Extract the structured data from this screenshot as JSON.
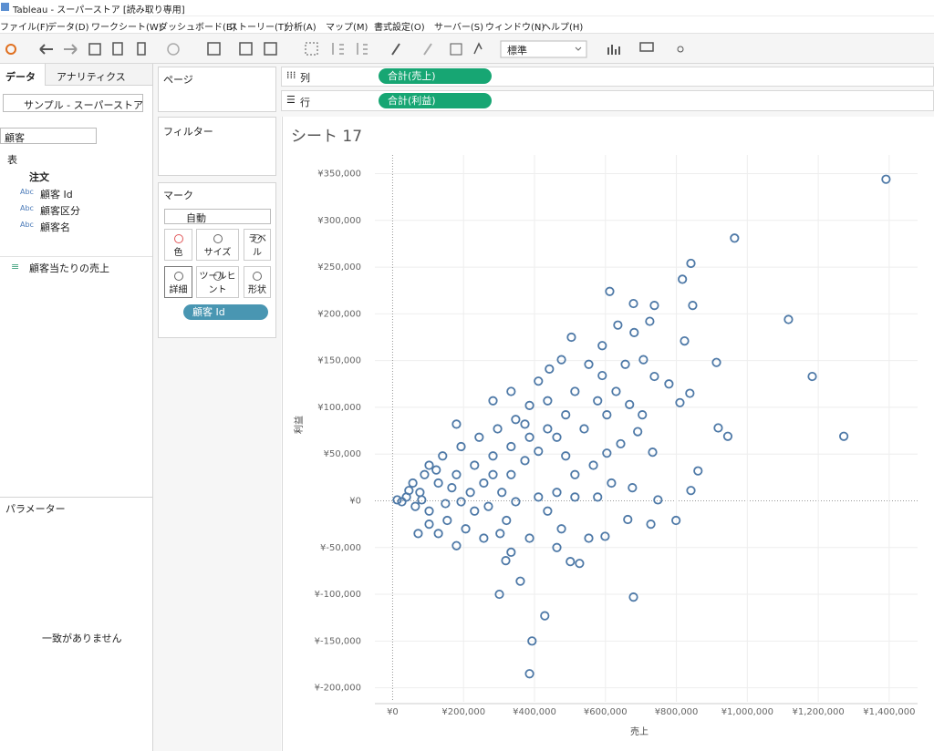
{
  "window": {
    "title": "Tableau - スーパーストア [読み取り専用]"
  },
  "menu": [
    "ファイル(F)",
    "データ(D)",
    "ワークシート(W)",
    "ダッシュボード(B)",
    "ストーリー(T)",
    "分析(A)",
    "マップ(M)",
    "書式設定(O)",
    "サーバー(S)",
    "ウィンドウ(N)",
    "ヘルプ(H)"
  ],
  "toolbar": {
    "fit": "標準"
  },
  "data_pane": {
    "tabs": [
      "データ",
      "アナリティクス"
    ],
    "datasource": "サンプル - スーパーストア",
    "search": "顧客",
    "section": "表",
    "table": "注文",
    "fields": [
      {
        "type": "Abc",
        "name": "顧客 Id"
      },
      {
        "type": "Abc",
        "name": "顧客区分"
      },
      {
        "type": "Abc",
        "name": "顧客名"
      }
    ],
    "calc_field": "顧客当たりの売上",
    "parameters": "パラメーター",
    "no_match": "一致がありません"
  },
  "cards": {
    "pages": "ページ",
    "filters": "フィルター",
    "marks": "マーク",
    "mark_type": "自動",
    "buttons": [
      "色",
      "サイズ",
      "ラベル",
      "詳細",
      "ツールヒント",
      "形状"
    ],
    "detail_pill": "顧客 Id"
  },
  "shelves": {
    "columns": {
      "label": "列",
      "pill": "合計(売上)"
    },
    "rows": {
      "label": "行",
      "pill": "合計(利益)"
    }
  },
  "chart_data": {
    "type": "scatter",
    "title": "シート 17",
    "x_label": "売上",
    "y_label": "利益",
    "color": "#4e79a7",
    "grid": true,
    "xlim": [
      -50000,
      1480000
    ],
    "ylim": [
      -215000,
      370000
    ],
    "xticks": [
      {
        "value": 0,
        "label": "¥0"
      },
      {
        "value": 200000,
        "label": "¥200,000"
      },
      {
        "value": 400000,
        "label": "¥400,000"
      },
      {
        "value": 600000,
        "label": "¥600,000"
      },
      {
        "value": 800000,
        "label": "¥800,000"
      },
      {
        "value": 1000000,
        "label": "¥1,000,000"
      },
      {
        "value": 1200000,
        "label": "¥1,200,000"
      },
      {
        "value": 1400000,
        "label": "¥1,400,000"
      }
    ],
    "yticks": [
      {
        "value": 350000,
        "label": "¥350,000"
      },
      {
        "value": 300000,
        "label": "¥300,000"
      },
      {
        "value": 250000,
        "label": "¥250,000"
      },
      {
        "value": 200000,
        "label": "¥200,000"
      },
      {
        "value": 150000,
        "label": "¥150,000"
      },
      {
        "value": 100000,
        "label": "¥100,000"
      },
      {
        "value": 50000,
        "label": "¥50,000"
      },
      {
        "value": 0,
        "label": "¥0"
      },
      {
        "value": -50000,
        "label": "¥-50,000"
      },
      {
        "value": -100000,
        "label": "¥-100,000"
      },
      {
        "value": -150000,
        "label": "¥-150,000"
      },
      {
        "value": -200000,
        "label": "¥-200,000"
      }
    ],
    "x": [
      1391000,
      964000,
      841000,
      817000,
      846000,
      1116000,
      1183000,
      1272000,
      913000,
      945000,
      918000,
      861000,
      841000,
      612000,
      679000,
      738000,
      725000,
      681000,
      635000,
      823000,
      504000,
      679000,
      386000,
      393000,
      429000,
      360000,
      319000,
      301000,
      599000,
      527000,
      663000,
      799000,
      728000,
      748000,
      676000,
      810000,
      838000,
      779000,
      707000,
      738000,
      668000,
      704000,
      691000,
      733000,
      643000,
      604000,
      566000,
      514000,
      591000,
      553000,
      476000,
      442000,
      411000,
      514000,
      578000,
      488000,
      437000,
      540000,
      386000,
      334000,
      283000,
      231000,
      180000,
      129000,
      77000,
      39000,
      13000,
      26000,
      64000,
      103000,
      154000,
      206000,
      257000,
      303000,
      231000,
      347000,
      411000,
      463000,
      514000,
      437000,
      386000,
      463000,
      501000,
      553000,
      334000,
      283000,
      334000,
      373000,
      411000,
      463000,
      347000,
      296000,
      244000,
      193000,
      141000,
      103000,
      180000,
      283000,
      334000,
      386000,
      437000,
      373000,
      167000,
      219000,
      103000,
      129000,
      72000,
      180000,
      476000,
      578000,
      617000,
      488000,
      604000,
      630000,
      656000,
      591000,
      57000,
      90000,
      123000,
      46000,
      82000,
      193000,
      149000,
      257000,
      308000,
      270000,
      321000
    ],
    "values": [
      344000,
      281000,
      254000,
      237000,
      209000,
      194000,
      133000,
      69000,
      148000,
      69000,
      78000,
      32000,
      11000,
      224000,
      211000,
      209000,
      192000,
      180000,
      188000,
      171000,
      175000,
      -103000,
      -185000,
      -150000,
      -123000,
      -86000,
      -64000,
      -100000,
      -38000,
      -67000,
      -20000,
      -21000,
      -25000,
      1000,
      14000,
      105000,
      115000,
      125000,
      151000,
      133000,
      103000,
      92000,
      74000,
      52000,
      61000,
      51000,
      38000,
      28000,
      134000,
      146000,
      151000,
      141000,
      128000,
      117000,
      107000,
      92000,
      77000,
      77000,
      68000,
      58000,
      48000,
      38000,
      28000,
      19000,
      9000,
      4000,
      1000,
      -1000,
      -6000,
      -11000,
      -21000,
      -30000,
      -40000,
      -35000,
      -11000,
      -1000,
      4000,
      9000,
      4000,
      -11000,
      -40000,
      -50000,
      -65000,
      -40000,
      -55000,
      28000,
      28000,
      43000,
      53000,
      68000,
      87000,
      77000,
      68000,
      58000,
      48000,
      38000,
      82000,
      107000,
      117000,
      102000,
      107000,
      82000,
      14000,
      9000,
      -25000,
      -35000,
      -35000,
      -48000,
      -30000,
      4000,
      19000,
      48000,
      92000,
      117000,
      146000,
      166000,
      19000,
      28000,
      33000,
      11000,
      1000,
      -1000,
      -3000,
      19000,
      9000,
      -6000,
      -21000
    ]
  }
}
